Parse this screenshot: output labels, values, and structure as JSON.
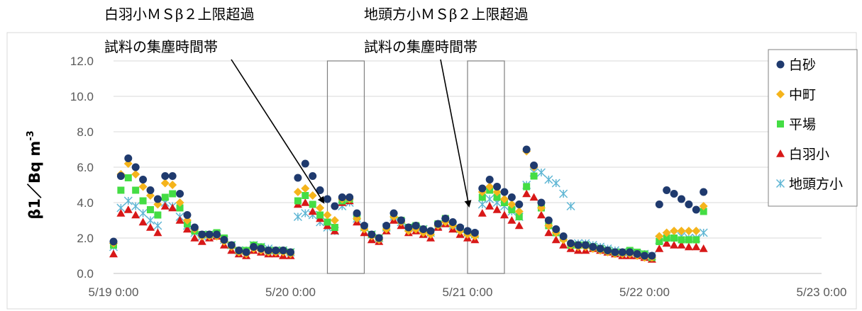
{
  "chart_data": {
    "type": "scatter",
    "ylabel": "β1／Bq m-3",
    "ylim": [
      0,
      12
    ],
    "y_ticks": [
      "0.0",
      "2.0",
      "4.0",
      "6.0",
      "8.0",
      "10.0",
      "12.0"
    ],
    "x_ticks": [
      "5/19 0:00",
      "5/20 0:00",
      "5/21 0:00",
      "5/22 0:00",
      "5/23 0:00"
    ],
    "x_unit": "hours since 5/19 0:00",
    "grid": "horizontal",
    "legend_position": "top-right",
    "colors": {
      "白砂": "#1f3a6e",
      "中町": "#f5b41b",
      "平場": "#44dd44",
      "白羽小": "#d81818",
      "地頭方小": "#5fb6d4"
    },
    "annotations": [
      {
        "lines": [
          "白羽小ＭＳβ２上限超過",
          "試料の集塵時間帯"
        ],
        "box_x": [
          29,
          34
        ],
        "arrow_to": [
          28.5,
          4.0
        ]
      },
      {
        "lines": [
          "地頭方小ＭＳβ２上限超過",
          "試料の集塵時間帯"
        ],
        "box_x": [
          48,
          53
        ],
        "arrow_to": [
          48.2,
          3.8
        ]
      }
    ],
    "series": [
      {
        "name": "白砂",
        "marker": "circle",
        "x": [
          0,
          1,
          2,
          3,
          4,
          5,
          6,
          7,
          8,
          9,
          10,
          11,
          12,
          13,
          14,
          15,
          16,
          17,
          18,
          19,
          20,
          21,
          22,
          23,
          24,
          25,
          26,
          27,
          28,
          29,
          30,
          31,
          32,
          33,
          34,
          35,
          36,
          37,
          38,
          39,
          40,
          41,
          42,
          43,
          44,
          45,
          46,
          47,
          48,
          49,
          50,
          51,
          52,
          53,
          54,
          55,
          56,
          57,
          58,
          59,
          60,
          61,
          62,
          63,
          64,
          65,
          66,
          67,
          68,
          69,
          70,
          71,
          72,
          73,
          74,
          75,
          76,
          77,
          78,
          79,
          80
        ],
        "y": [
          1.8,
          5.5,
          6.5,
          6.0,
          5.3,
          4.7,
          4.2,
          5.5,
          5.5,
          4.5,
          3.3,
          2.6,
          2.2,
          2.2,
          2.2,
          1.9,
          1.6,
          1.3,
          1.2,
          1.5,
          1.4,
          1.3,
          1.3,
          1.3,
          1.2,
          5.4,
          6.2,
          5.5,
          4.7,
          4.2,
          3.8,
          4.3,
          4.3,
          3.4,
          2.7,
          2.2,
          2.0,
          2.7,
          3.4,
          3.0,
          2.6,
          2.7,
          2.5,
          2.4,
          2.8,
          3.1,
          2.9,
          2.6,
          2.4,
          2.3,
          4.8,
          5.3,
          4.9,
          4.6,
          4.3,
          3.9,
          7.0,
          6.1,
          4.0,
          3.0,
          2.5,
          2.1,
          1.7,
          1.6,
          1.6,
          1.5,
          1.4,
          1.3,
          1.2,
          1.2,
          1.2,
          1.1,
          1.0,
          1.0,
          3.9,
          4.7,
          4.5,
          4.2,
          3.9,
          3.6,
          4.6
        ]
      },
      {
        "name": "中町",
        "marker": "diamond",
        "x": [
          0,
          1,
          2,
          3,
          4,
          5,
          6,
          7,
          8,
          9,
          10,
          11,
          12,
          13,
          14,
          15,
          16,
          17,
          18,
          19,
          20,
          21,
          22,
          23,
          24,
          25,
          26,
          27,
          28,
          29,
          30,
          31,
          32,
          33,
          34,
          35,
          36,
          37,
          38,
          39,
          40,
          41,
          42,
          43,
          44,
          45,
          46,
          47,
          48,
          49,
          50,
          51,
          52,
          53,
          54,
          55,
          56,
          57,
          58,
          59,
          60,
          61,
          62,
          63,
          64,
          65,
          66,
          67,
          68,
          69,
          70,
          71,
          72,
          73,
          74,
          75,
          76,
          77,
          78,
          79,
          80
        ],
        "y": [
          1.7,
          5.6,
          6.2,
          5.6,
          4.9,
          4.4,
          3.9,
          5.1,
          5.0,
          4.0,
          3.0,
          2.5,
          2.1,
          2.1,
          2.1,
          1.8,
          1.5,
          1.2,
          1.1,
          1.4,
          1.3,
          1.2,
          1.2,
          1.2,
          1.1,
          4.6,
          4.8,
          4.4,
          3.7,
          3.3,
          3.0,
          4.2,
          4.2,
          3.1,
          2.5,
          2.1,
          1.9,
          2.5,
          3.2,
          2.9,
          2.4,
          2.5,
          2.3,
          2.2,
          2.7,
          2.9,
          2.7,
          2.4,
          2.2,
          2.1,
          4.6,
          4.9,
          4.6,
          4.2,
          3.9,
          3.5,
          6.9,
          6.0,
          3.7,
          2.7,
          2.3,
          1.9,
          1.6,
          1.5,
          1.5,
          1.4,
          1.3,
          1.2,
          1.1,
          1.1,
          1.1,
          1.0,
          0.9,
          0.9,
          2.1,
          2.3,
          2.4,
          2.4,
          2.4,
          2.4,
          3.8
        ]
      },
      {
        "name": "平場",
        "marker": "square",
        "x": [
          0,
          1,
          2,
          3,
          4,
          5,
          6,
          7,
          8,
          9,
          10,
          11,
          12,
          13,
          14,
          15,
          16,
          17,
          18,
          19,
          20,
          21,
          22,
          23,
          24,
          25,
          26,
          27,
          28,
          29,
          30,
          31,
          32,
          33,
          34,
          35,
          36,
          37,
          38,
          39,
          40,
          41,
          42,
          43,
          44,
          45,
          46,
          47,
          48,
          49,
          50,
          51,
          52,
          53,
          54,
          55,
          56,
          57,
          58,
          59,
          60,
          61,
          62,
          63,
          64,
          65,
          66,
          67,
          68,
          69,
          70,
          71,
          72,
          73,
          74,
          75,
          76,
          77,
          78,
          79,
          80
        ],
        "y": [
          1.6,
          4.7,
          5.4,
          4.7,
          4.1,
          3.6,
          3.3,
          4.3,
          4.5,
          3.7,
          2.8,
          2.4,
          2.2,
          2.2,
          2.3,
          2.0,
          1.6,
          1.3,
          1.3,
          1.6,
          1.5,
          1.3,
          1.3,
          1.3,
          1.2,
          4.1,
          4.4,
          3.9,
          3.3,
          2.9,
          2.6,
          4.1,
          4.2,
          3.2,
          2.6,
          2.2,
          2.0,
          2.6,
          3.3,
          3.0,
          2.6,
          2.7,
          2.5,
          2.3,
          2.8,
          3.1,
          2.8,
          2.5,
          2.3,
          2.2,
          4.3,
          4.7,
          4.3,
          4.0,
          3.6,
          3.2,
          4.9,
          5.5,
          3.7,
          2.7,
          2.3,
          2.0,
          1.6,
          1.6,
          1.6,
          1.5,
          1.4,
          1.3,
          1.2,
          1.2,
          1.3,
          1.2,
          1.1,
          0.9,
          1.8,
          2.0,
          2.0,
          1.9,
          1.9,
          1.9,
          3.5
        ]
      },
      {
        "name": "白羽小",
        "marker": "triangle",
        "x": [
          0,
          1,
          2,
          3,
          4,
          5,
          6,
          7,
          8,
          9,
          10,
          11,
          12,
          13,
          14,
          15,
          16,
          17,
          18,
          19,
          20,
          21,
          22,
          23,
          24,
          25,
          26,
          27,
          28,
          29,
          30,
          31,
          32,
          33,
          34,
          35,
          36,
          37,
          38,
          39,
          40,
          41,
          42,
          43,
          44,
          45,
          46,
          47,
          48,
          49,
          50,
          51,
          52,
          53,
          54,
          55,
          56,
          57,
          58,
          59,
          60,
          61,
          62,
          63,
          64,
          65,
          66,
          67,
          68,
          69,
          70,
          71,
          72,
          73,
          74,
          75,
          76,
          77,
          78,
          79,
          80
        ],
        "y": [
          1.1,
          3.4,
          3.6,
          3.3,
          2.9,
          2.6,
          2.3,
          3.8,
          3.7,
          3.0,
          2.5,
          2.0,
          1.8,
          2.0,
          2.1,
          1.6,
          1.3,
          1.1,
          1.0,
          1.3,
          1.2,
          1.1,
          1.1,
          1.0,
          1.0,
          3.9,
          4.0,
          3.5,
          3.1,
          2.7,
          2.4,
          4.0,
          4.1,
          2.9,
          2.3,
          1.9,
          1.8,
          2.4,
          3.0,
          2.7,
          2.3,
          2.4,
          2.2,
          2.0,
          2.6,
          2.8,
          2.5,
          2.2,
          2.0,
          1.9,
          3.4,
          3.8,
          3.6,
          3.3,
          3.0,
          2.7,
          4.5,
          4.3,
          3.3,
          2.3,
          1.9,
          1.6,
          1.4,
          1.3,
          1.3,
          1.4,
          1.3,
          1.2,
          1.1,
          1.0,
          1.0,
          1.0,
          0.9,
          0.8,
          1.4,
          1.7,
          1.6,
          1.6,
          1.5,
          1.5,
          1.4
        ]
      },
      {
        "name": "地頭方小",
        "marker": "asterisk",
        "x": [
          0,
          1,
          2,
          3,
          4,
          5,
          6,
          7,
          8,
          9,
          10,
          11,
          12,
          13,
          14,
          15,
          16,
          17,
          18,
          19,
          20,
          21,
          22,
          23,
          24,
          25,
          26,
          27,
          28,
          29,
          30,
          31,
          32,
          33,
          34,
          35,
          36,
          37,
          38,
          39,
          40,
          41,
          42,
          43,
          44,
          45,
          46,
          47,
          48,
          49,
          50,
          51,
          52,
          53,
          54,
          55,
          56,
          57,
          58,
          59,
          60,
          61,
          62,
          63,
          64,
          65,
          66,
          67,
          68,
          69,
          70,
          71,
          72,
          73,
          74,
          75,
          76,
          77,
          78,
          79,
          80
        ],
        "y": [
          1.5,
          3.7,
          4.1,
          3.8,
          3.4,
          3.0,
          2.7,
          4.0,
          3.8,
          3.2,
          2.7,
          2.3,
          2.1,
          2.2,
          2.2,
          1.9,
          1.6,
          1.3,
          1.3,
          1.6,
          1.5,
          1.4,
          1.3,
          1.3,
          1.2,
          3.2,
          3.4,
          3.3,
          2.9,
          2.6,
          2.4,
          3.8,
          4.0,
          3.1,
          2.6,
          2.2,
          2.0,
          2.6,
          3.2,
          2.9,
          2.6,
          2.6,
          2.5,
          2.3,
          2.7,
          2.9,
          2.7,
          2.5,
          2.3,
          2.2,
          3.9,
          4.2,
          4.0,
          3.8,
          3.5,
          3.2,
          5.0,
          5.7,
          5.7,
          5.3,
          5.1,
          4.5,
          3.8,
          1.7,
          1.7,
          1.6,
          1.5,
          1.4,
          1.3,
          1.2,
          1.2,
          1.1,
          1.1,
          1.0,
          1.9,
          2.1,
          2.2,
          2.1,
          2.0,
          2.0,
          2.3
        ]
      }
    ]
  }
}
